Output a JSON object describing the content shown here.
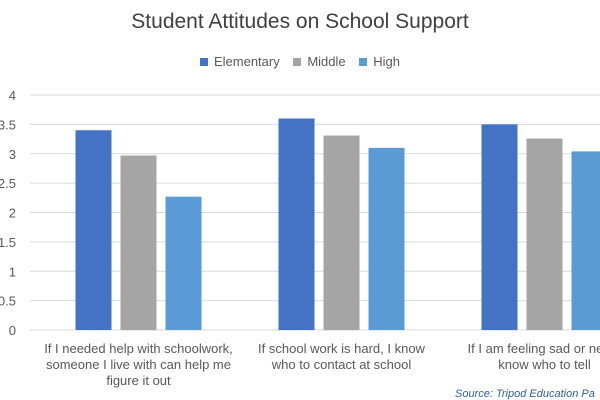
{
  "chart_data": {
    "type": "bar",
    "title": "Student Attitudes on School Support",
    "categories": [
      "If I needed help with schoolwork, someone I live with can help me figure it out",
      "If school work is hard, I know who to contact at school",
      "If I am feeling sad or nervous, I know who to tell"
    ],
    "category_label_lines": [
      [
        "If I needed help with schoolwork,",
        "someone I live with can help me",
        "figure it out"
      ],
      [
        "If school work is hard, I know",
        "who to contact at school"
      ],
      [
        "If I am feeling sad or nervo",
        "know who to tell"
      ]
    ],
    "series": [
      {
        "name": "Elementary",
        "values": [
          3.4,
          3.6,
          3.5
        ]
      },
      {
        "name": "Middle",
        "values": [
          2.97,
          3.31,
          3.26
        ]
      },
      {
        "name": "High",
        "values": [
          2.27,
          3.1,
          3.04
        ]
      }
    ],
    "colors": [
      "#4472c4",
      "#a5a5a5",
      "#5b9bd5"
    ],
    "ylim": [
      0,
      4
    ],
    "yticks": [
      "0",
      "0.5",
      "1",
      "1.5",
      "2",
      "2.5",
      "3",
      "3.5",
      "4"
    ],
    "grid": true,
    "legend": "top-center",
    "note": "Source: Tripod Education Pa"
  }
}
